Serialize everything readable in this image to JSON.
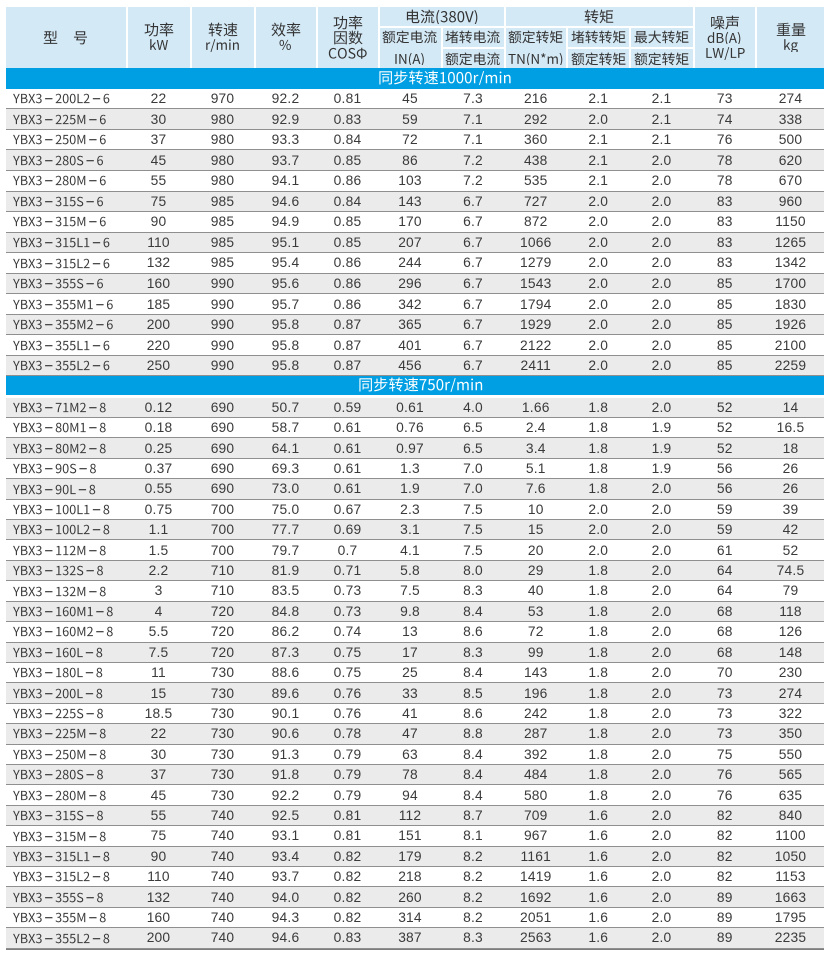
{
  "page": {
    "background": "#ffffff"
  },
  "table": {
    "header": {
      "model": "型　号",
      "power": {
        "line1": "功率",
        "line2": "kW"
      },
      "speed": {
        "line1": "转速",
        "line2": "r/min"
      },
      "efficiency": {
        "line1": "效率",
        "line2": "%"
      },
      "power_factor": {
        "line1": "功率",
        "line2": "因数",
        "line3": "COSΦ"
      },
      "current_group": "电流(380V)",
      "rated_current": {
        "line1": "额定电流",
        "line2": "IN(A)"
      },
      "locked_rotor_current_ratio": {
        "numerator": "堵转电流",
        "denominator": "额定电流"
      },
      "torque_group": "转矩",
      "rated_torque": {
        "line1": "额定转矩",
        "line2": "TN(N*m)"
      },
      "locked_rotor_torque_ratio": {
        "numerator": "堵转转矩",
        "denominator": "额定转矩"
      },
      "max_torque_ratio": {
        "numerator": "最大转矩",
        "denominator": "额定转矩"
      },
      "noise": {
        "line1": "噪声",
        "line2": "dB(A)",
        "line3": "LW/LP"
      },
      "weight": {
        "line1": "重量",
        "line2": "kg"
      }
    },
    "sections": [
      {
        "band_label": "同步转速1000r/min",
        "rows": [
          [
            "YBX3-200L2-6",
            "22",
            "970",
            "92.2",
            "0.81",
            "45",
            "7.3",
            "216",
            "2.1",
            "2.1",
            "73",
            "274"
          ],
          [
            "YBX3-225M-6",
            "30",
            "980",
            "92.9",
            "0.83",
            "59",
            "7.1",
            "292",
            "2.0",
            "2.1",
            "74",
            "338"
          ],
          [
            "YBX3-250M-6",
            "37",
            "980",
            "93.3",
            "0.84",
            "72",
            "7.1",
            "360",
            "2.1",
            "2.1",
            "76",
            "500"
          ],
          [
            "YBX3-280S-6",
            "45",
            "980",
            "93.7",
            "0.85",
            "86",
            "7.2",
            "438",
            "2.1",
            "2.0",
            "78",
            "620"
          ],
          [
            "YBX3-280M-6",
            "55",
            "980",
            "94.1",
            "0.86",
            "103",
            "7.2",
            "535",
            "2.1",
            "2.0",
            "78",
            "670"
          ],
          [
            "YBX3-315S-6",
            "75",
            "985",
            "94.6",
            "0.84",
            "143",
            "6.7",
            "727",
            "2.0",
            "2.0",
            "83",
            "960"
          ],
          [
            "YBX3-315M-6",
            "90",
            "985",
            "94.9",
            "0.85",
            "170",
            "6.7",
            "872",
            "2.0",
            "2.0",
            "83",
            "1150"
          ],
          [
            "YBX3-315L1-6",
            "110",
            "985",
            "95.1",
            "0.85",
            "207",
            "6.7",
            "1066",
            "2.0",
            "2.0",
            "83",
            "1265"
          ],
          [
            "YBX3-315L2-6",
            "132",
            "985",
            "95.4",
            "0.86",
            "244",
            "6.7",
            "1279",
            "2.0",
            "2.0",
            "83",
            "1342"
          ],
          [
            "YBX3-355S-6",
            "160",
            "990",
            "95.6",
            "0.86",
            "296",
            "6.7",
            "1543",
            "2.0",
            "2.0",
            "85",
            "1700"
          ],
          [
            "YBX3-355M1-6",
            "185",
            "990",
            "95.7",
            "0.86",
            "342",
            "6.7",
            "1794",
            "2.0",
            "2.0",
            "85",
            "1830"
          ],
          [
            "YBX3-355M2-6",
            "200",
            "990",
            "95.8",
            "0.87",
            "365",
            "6.7",
            "1929",
            "2.0",
            "2.0",
            "85",
            "1926"
          ],
          [
            "YBX3-355L1-6",
            "220",
            "990",
            "95.8",
            "0.87",
            "401",
            "6.7",
            "2122",
            "2.0",
            "2.0",
            "85",
            "2100"
          ],
          [
            "YBX3-355L2-6",
            "250",
            "990",
            "95.8",
            "0.87",
            "456",
            "6.7",
            "2411",
            "2.0",
            "2.0",
            "85",
            "2259"
          ]
        ]
      },
      {
        "band_label": "同步转速750r/min",
        "rows": [
          [
            "YBX3-71M2-8",
            "0.12",
            "690",
            "50.7",
            "0.59",
            "0.61",
            "4.0",
            "1.66",
            "1.8",
            "2.0",
            "52",
            "14"
          ],
          [
            "YBX3-80M1-8",
            "0.18",
            "690",
            "58.7",
            "0.61",
            "0.76",
            "6.5",
            "2.4",
            "1.8",
            "1.9",
            "52",
            "16.5"
          ],
          [
            "YBX3-80M2-8",
            "0.25",
            "690",
            "64.1",
            "0.61",
            "0.97",
            "6.5",
            "3.4",
            "1.8",
            "1.9",
            "52",
            "18"
          ],
          [
            "YBX3-90S-8",
            "0.37",
            "690",
            "69.3",
            "0.61",
            "1.3",
            "7.0",
            "5.1",
            "1.8",
            "1.9",
            "56",
            "26"
          ],
          [
            "YBX3-90L-8",
            "0.55",
            "690",
            "73.0",
            "0.61",
            "1.9",
            "7.0",
            "7.6",
            "1.8",
            "2.0",
            "56",
            "26"
          ],
          [
            "YBX3-100L1-8",
            "0.75",
            "700",
            "75.0",
            "0.67",
            "2.3",
            "7.5",
            "10",
            "2.0",
            "2.0",
            "59",
            "39"
          ],
          [
            "YBX3-100L2-8",
            "1.1",
            "700",
            "77.7",
            "0.69",
            "3.1",
            "7.5",
            "15",
            "2.0",
            "2.0",
            "59",
            "42"
          ],
          [
            "YBX3-112M-8",
            "1.5",
            "700",
            "79.7",
            "0.7",
            "4.1",
            "7.5",
            "20",
            "2.0",
            "2.0",
            "61",
            "52"
          ],
          [
            "YBX3-132S-8",
            "2.2",
            "710",
            "81.9",
            "0.71",
            "5.8",
            "8.0",
            "29",
            "1.8",
            "2.0",
            "64",
            "74.5"
          ],
          [
            "YBX3-132M-8",
            "3",
            "710",
            "83.5",
            "0.73",
            "7.5",
            "8.3",
            "40",
            "1.8",
            "2.0",
            "64",
            "79"
          ],
          [
            "YBX3-160M1-8",
            "4",
            "720",
            "84.8",
            "0.73",
            "9.8",
            "8.4",
            "53",
            "1.8",
            "2.0",
            "68",
            "118"
          ],
          [
            "YBX3-160M2-8",
            "5.5",
            "720",
            "86.2",
            "0.74",
            "13",
            "8.6",
            "72",
            "1.8",
            "2.0",
            "68",
            "126"
          ],
          [
            "YBX3-160L-8",
            "7.5",
            "720",
            "87.3",
            "0.75",
            "17",
            "8.3",
            "99",
            "1.8",
            "2.0",
            "68",
            "148"
          ],
          [
            "YBX3-180L-8",
            "11",
            "730",
            "88.6",
            "0.75",
            "25",
            "8.4",
            "143",
            "1.8",
            "2.0",
            "70",
            "230"
          ],
          [
            "YBX3-200L-8",
            "15",
            "730",
            "89.6",
            "0.76",
            "33",
            "8.5",
            "196",
            "1.8",
            "2.0",
            "73",
            "274"
          ],
          [
            "YBX3-225S-8",
            "18.5",
            "730",
            "90.1",
            "0.76",
            "41",
            "8.6",
            "242",
            "1.8",
            "2.0",
            "73",
            "322"
          ],
          [
            "YBX3-225M-8",
            "22",
            "730",
            "90.6",
            "0.78",
            "47",
            "8.8",
            "287",
            "1.8",
            "2.0",
            "73",
            "350"
          ],
          [
            "YBX3-250M-8",
            "30",
            "730",
            "91.3",
            "0.79",
            "63",
            "8.4",
            "392",
            "1.8",
            "2.0",
            "75",
            "550"
          ],
          [
            "YBX3-280S-8",
            "37",
            "730",
            "91.8",
            "0.79",
            "78",
            "8.4",
            "484",
            "1.8",
            "2.0",
            "76",
            "565"
          ],
          [
            "YBX3-280M-8",
            "45",
            "730",
            "92.2",
            "0.79",
            "94",
            "8.4",
            "580",
            "1.8",
            "2.0",
            "76",
            "635"
          ],
          [
            "YBX3-315S-8",
            "55",
            "740",
            "92.5",
            "0.81",
            "112",
            "8.7",
            "709",
            "1.6",
            "2.0",
            "82",
            "840"
          ],
          [
            "YBX3-315M-8",
            "75",
            "740",
            "93.1",
            "0.81",
            "151",
            "8.1",
            "967",
            "1.6",
            "2.0",
            "82",
            "1100"
          ],
          [
            "YBX3-315L1-8",
            "90",
            "740",
            "93.4",
            "0.82",
            "179",
            "8.2",
            "1161",
            "1.6",
            "2.0",
            "82",
            "1050"
          ],
          [
            "YBX3-315L2-8",
            "110",
            "740",
            "93.7",
            "0.82",
            "218",
            "8.2",
            "1419",
            "1.6",
            "2.0",
            "82",
            "1153"
          ],
          [
            "YBX3-355S-8",
            "132",
            "740",
            "94.0",
            "0.82",
            "260",
            "8.2",
            "1692",
            "1.6",
            "2.0",
            "89",
            "1663"
          ],
          [
            "YBX3-355M-8",
            "160",
            "740",
            "94.3",
            "0.82",
            "314",
            "8.2",
            "2051",
            "1.6",
            "2.0",
            "89",
            "1795"
          ],
          [
            "YBX3-355L2-8",
            "200",
            "740",
            "94.6",
            "0.83",
            "387",
            "8.3",
            "2563",
            "1.6",
            "2.0",
            "89",
            "2235"
          ]
        ]
      }
    ]
  },
  "colors": {
    "header_bg": "#d4e9f6",
    "band_bg": "#009fe3",
    "band_text": "#ffffff",
    "stripe_bg": "#ebebeb",
    "row_bg": "#ffffff",
    "separator": "#8f8f8f",
    "text": "#3a3a3a",
    "header_text": "#333333"
  }
}
